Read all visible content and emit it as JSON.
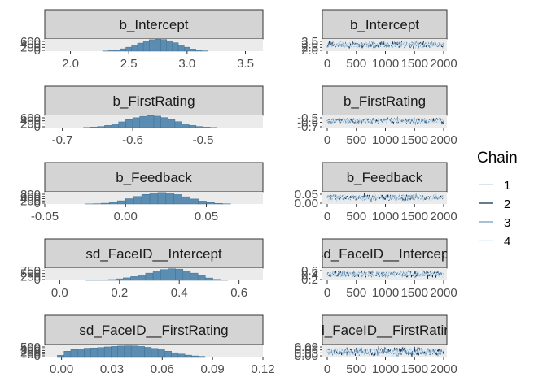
{
  "chart_data": {
    "type": "mcmc-diagnostics",
    "legend": {
      "title": "Chain",
      "entries": [
        "1",
        "2",
        "3",
        "4"
      ],
      "colors": [
        "#b9d6ea",
        "#0d2a4a",
        "#6f9cc0",
        "#e2eef6"
      ],
      "position": "right"
    },
    "rows": [
      {
        "parameter": "b_Intercept",
        "histogram": {
          "xlim": [
            1.78,
            3.65
          ],
          "x_ticks": [
            2.0,
            2.5,
            3.0,
            3.5
          ],
          "x_tick_labels": [
            "2.0",
            "2.5",
            "3.0",
            "3.5"
          ],
          "y_tick_labels": [
            "600",
            "400",
            "200",
            "0"
          ],
          "y_max": 680,
          "bin_centers": [
            2.3,
            2.35,
            2.4,
            2.45,
            2.5,
            2.55,
            2.6,
            2.65,
            2.7,
            2.75,
            2.8,
            2.85,
            2.9,
            2.95,
            3.0,
            3.05,
            3.1,
            3.15
          ],
          "counts": [
            8,
            25,
            60,
            130,
            220,
            330,
            450,
            560,
            640,
            670,
            650,
            580,
            470,
            340,
            220,
            120,
            55,
            15
          ]
        },
        "trace": {
          "x_tick_labels": [
            "0",
            "500",
            "1000",
            "1500",
            "2000"
          ],
          "y_tick_labels": [
            "3.5",
            "3.0",
            "2.5",
            "2.0"
          ],
          "center": 2.78,
          "spread": 0.2,
          "ylim": [
            1.95,
            3.55
          ]
        }
      },
      {
        "parameter": "b_FirstRating",
        "histogram": {
          "xlim": [
            -0.725,
            -0.415
          ],
          "x_ticks": [
            -0.7,
            -0.6,
            -0.5
          ],
          "x_tick_labels": [
            "-0.7",
            "-0.6",
            "-0.5"
          ],
          "y_tick_labels": [
            "600",
            "400",
            "200",
            "0"
          ],
          "y_max": 680,
          "bin_centers": [
            -0.665,
            -0.655,
            -0.645,
            -0.635,
            -0.625,
            -0.615,
            -0.605,
            -0.595,
            -0.585,
            -0.575,
            -0.565,
            -0.555,
            -0.545,
            -0.535,
            -0.525,
            -0.515,
            -0.505,
            -0.495,
            -0.485
          ],
          "counts": [
            10,
            28,
            60,
            120,
            210,
            320,
            440,
            550,
            630,
            665,
            640,
            560,
            450,
            330,
            210,
            120,
            60,
            25,
            8
          ]
        },
        "trace": {
          "x_tick_labels": [
            "0",
            "500",
            "1000",
            "1500",
            "2000"
          ],
          "y_tick_labels": [
            "-0.5",
            "-0.6",
            "-0.7"
          ],
          "center": -0.575,
          "spread": 0.035,
          "ylim": [
            -0.74,
            -0.44
          ]
        }
      },
      {
        "parameter": "b_Feedback",
        "histogram": {
          "xlim": [
            -0.05,
            0.085
          ],
          "x_ticks": [
            -0.05,
            0.0,
            0.05
          ],
          "x_tick_labels": [
            "-0.05",
            "0.00",
            "0.05"
          ],
          "y_tick_labels": [
            "800",
            "600",
            "400",
            "200",
            "0"
          ],
          "y_max": 880,
          "bin_centers": [
            -0.0225,
            -0.0175,
            -0.0125,
            -0.0075,
            -0.0025,
            0.0025,
            0.0075,
            0.0125,
            0.0175,
            0.0225,
            0.0275,
            0.0325,
            0.0375,
            0.0425,
            0.0475,
            0.0525,
            0.0575,
            0.0625
          ],
          "counts": [
            5,
            20,
            55,
            120,
            230,
            380,
            540,
            690,
            790,
            830,
            790,
            680,
            520,
            360,
            210,
            105,
            40,
            12
          ]
        },
        "trace": {
          "x_tick_labels": [
            "0",
            "500",
            "1000",
            "1500",
            "2000"
          ],
          "y_tick_labels": [
            "0.05",
            "0.00"
          ],
          "center": 0.023,
          "spread": 0.013,
          "ylim": [
            -0.035,
            0.075
          ]
        }
      },
      {
        "parameter": "sd_FaceID__Intercept",
        "histogram": {
          "xlim": [
            -0.05,
            0.68
          ],
          "x_ticks": [
            0.0,
            0.2,
            0.4,
            0.6
          ],
          "x_tick_labels": [
            "0.0",
            "0.2",
            "0.4",
            "0.6"
          ],
          "y_tick_labels": [
            "750",
            "500",
            "250",
            "0"
          ],
          "y_max": 880,
          "bin_centers": [
            0.1,
            0.125,
            0.15,
            0.175,
            0.2,
            0.225,
            0.25,
            0.275,
            0.3,
            0.325,
            0.35,
            0.375,
            0.4,
            0.425,
            0.45,
            0.475,
            0.5,
            0.525,
            0.55
          ],
          "counts": [
            5,
            12,
            30,
            60,
            110,
            180,
            270,
            390,
            520,
            660,
            780,
            840,
            810,
            690,
            520,
            330,
            170,
            70,
            20
          ]
        },
        "trace": {
          "x_tick_labels": [
            "0",
            "500",
            "1000",
            "1500",
            "2000"
          ],
          "y_tick_labels": [
            "0.6",
            "0.4",
            "0.2"
          ],
          "center": 0.37,
          "spread": 0.07,
          "ylim": [
            0.08,
            0.66
          ]
        }
      },
      {
        "parameter": "sd_FaceID__FirstRating",
        "histogram": {
          "xlim": [
            -0.01,
            0.12
          ],
          "x_ticks": [
            0.0,
            0.03,
            0.06,
            0.09,
            0.12
          ],
          "x_tick_labels": [
            "0.00",
            "0.03",
            "0.06",
            "0.09",
            "0.12"
          ],
          "y_tick_labels": [
            "500",
            "400",
            "300",
            "200",
            "100",
            "0"
          ],
          "y_max": 560,
          "bin_centers": [
            -0.0005,
            0.0035,
            0.0075,
            0.0115,
            0.0155,
            0.0195,
            0.0235,
            0.0275,
            0.0315,
            0.0355,
            0.0395,
            0.0435,
            0.0475,
            0.0515,
            0.0555,
            0.0595,
            0.0635,
            0.0675,
            0.0715,
            0.0755,
            0.0795,
            0.0835
          ],
          "counts": [
            60,
            250,
            330,
            360,
            390,
            400,
            420,
            450,
            470,
            490,
            500,
            495,
            470,
            430,
            380,
            320,
            250,
            180,
            120,
            70,
            35,
            12
          ]
        },
        "trace": {
          "x_tick_labels": [
            "0",
            "500",
            "1000",
            "1500",
            "2000"
          ],
          "y_tick_labels": [
            "0.09",
            "0.06",
            "0.03",
            "0.00"
          ],
          "center": 0.04,
          "spread": 0.018,
          "ylim": [
            -0.004,
            0.1
          ]
        }
      }
    ]
  },
  "colors": {
    "bar_fill": "#5b8db3",
    "bar_edge": "#3f6f92",
    "strip_fill": "#d4d4d4",
    "strip_border": "#333333",
    "panel_bg": "#ebebeb"
  }
}
